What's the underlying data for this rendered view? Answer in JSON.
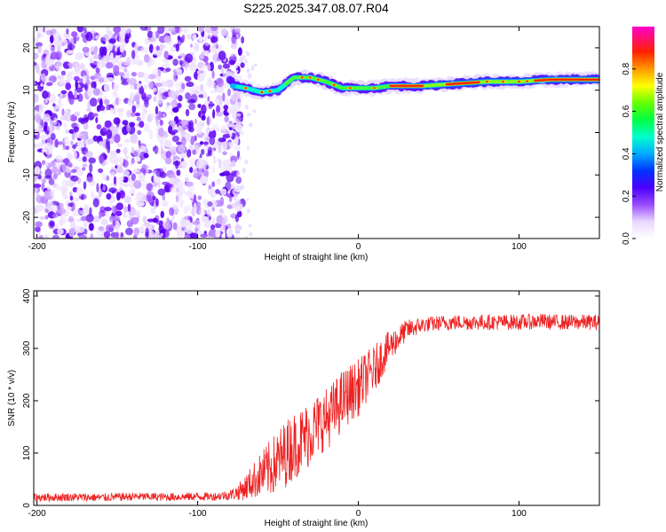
{
  "title": "S225.2025.347.08.07.R04",
  "chart_data": [
    {
      "type": "heatmap",
      "xlabel": "Height of straight line (km)",
      "ylabel": "Frequency (Hz)",
      "xlim": [
        -202,
        150
      ],
      "ylim": [
        -25,
        25
      ],
      "xticks": [
        -200,
        -100,
        0,
        100
      ],
      "yticks": [
        -20,
        -10,
        0,
        10,
        20
      ],
      "colorbar": {
        "label": "Normalized spectral amplitude",
        "ticks": [
          0.0,
          0.2,
          0.4,
          0.6,
          0.8
        ],
        "tick_labels": [
          "0.0",
          "0.2",
          "0.4",
          "0.6",
          "0.8"
        ],
        "range": [
          0,
          1
        ]
      },
      "description_points": {
        "line_frequency": [
          {
            "x": -78,
            "y": 11
          },
          {
            "x": -70,
            "y": 10.5
          },
          {
            "x": -60,
            "y": 9.5
          },
          {
            "x": -50,
            "y": 10
          },
          {
            "x": -40,
            "y": 13
          },
          {
            "x": -30,
            "y": 13
          },
          {
            "x": -20,
            "y": 12
          },
          {
            "x": -10,
            "y": 10.5
          },
          {
            "x": 0,
            "y": 10.5
          },
          {
            "x": 10,
            "y": 10.5
          },
          {
            "x": 20,
            "y": 11
          },
          {
            "x": 40,
            "y": 11
          },
          {
            "x": 60,
            "y": 11.5
          },
          {
            "x": 80,
            "y": 12
          },
          {
            "x": 100,
            "y": 12
          },
          {
            "x": 120,
            "y": 12.5
          },
          {
            "x": 150,
            "y": 12.5
          }
        ],
        "noise_region_x": [
          -202,
          -78
        ]
      }
    },
    {
      "type": "line",
      "xlabel": "Height of straight line (km)",
      "ylabel": "SNR (10 * v/v)",
      "xlim": [
        -202,
        150
      ],
      "ylim": [
        0,
        410
      ],
      "xticks": [
        -200,
        -100,
        0,
        100
      ],
      "yticks": [
        0,
        100,
        200,
        300,
        400
      ],
      "color": "#ee2222",
      "series": [
        {
          "x": [
            -202,
            -180,
            -160,
            -140,
            -120,
            -100,
            -90,
            -80,
            -75,
            -70,
            -65,
            -60,
            -55,
            -50,
            -45,
            -40,
            -35,
            -30,
            -25,
            -20,
            -15,
            -10,
            -5,
            0,
            5,
            10,
            15,
            20,
            25,
            30,
            40,
            50,
            60,
            80,
            100,
            115,
            120,
            130,
            140,
            150
          ],
          "values": [
            15,
            16,
            15,
            17,
            16,
            17,
            17,
            20,
            25,
            35,
            48,
            60,
            70,
            85,
            100,
            115,
            125,
            140,
            155,
            165,
            180,
            200,
            215,
            225,
            245,
            260,
            285,
            305,
            320,
            335,
            345,
            348,
            350,
            350,
            350,
            352,
            350,
            350,
            350,
            350
          ],
          "spread": [
            8,
            8,
            8,
            8,
            8,
            8,
            8,
            10,
            15,
            25,
            35,
            45,
            55,
            60,
            65,
            65,
            65,
            65,
            60,
            60,
            60,
            60,
            55,
            55,
            50,
            45,
            40,
            30,
            25,
            20,
            15,
            15,
            15,
            15,
            15,
            15,
            15,
            15,
            15,
            15
          ]
        }
      ]
    }
  ]
}
